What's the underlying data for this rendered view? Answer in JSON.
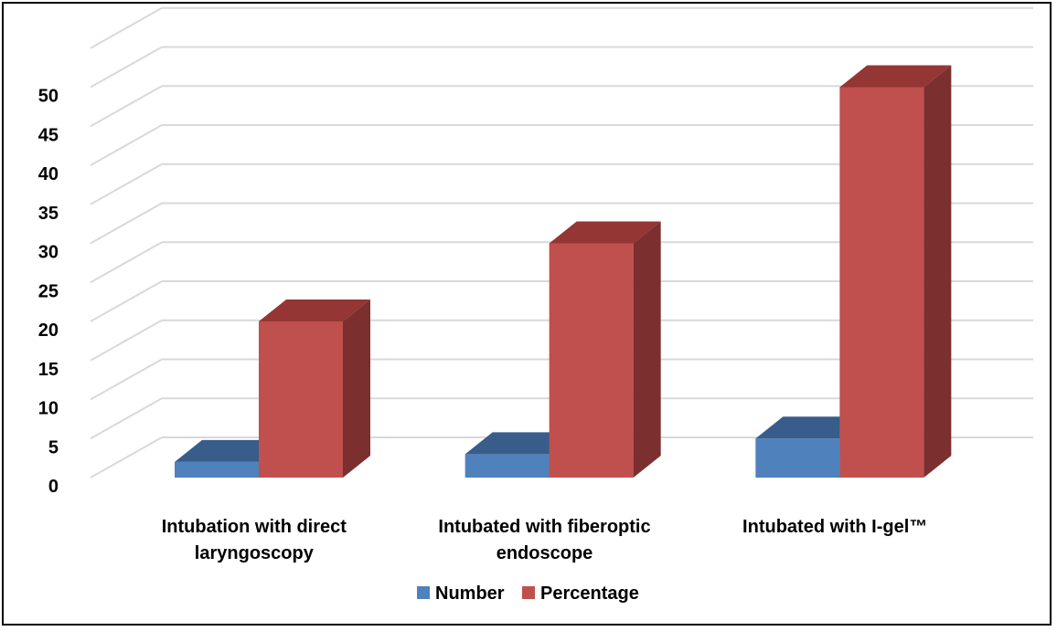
{
  "chart_data": {
    "type": "bar",
    "style": "3d-clustered-column",
    "categories": [
      [
        "Intubation with direct",
        "laryngoscopy"
      ],
      [
        "Intubated with fiberoptic",
        "endoscope"
      ],
      [
        "Intubated with I-gel™"
      ]
    ],
    "series": [
      {
        "name": "Number",
        "values": [
          2,
          3,
          5
        ],
        "color": "#4F81BD",
        "top_color": "#385D8A",
        "side_color": "#2C4A6E"
      },
      {
        "name": "Percentage",
        "values": [
          20,
          30,
          50
        ],
        "color": "#C0504D",
        "top_color": "#943634",
        "side_color": "#7B2F2E"
      }
    ],
    "yticks": [
      "0",
      "5",
      "10",
      "15",
      "20",
      "25",
      "30",
      "35",
      "40",
      "45",
      "50"
    ],
    "ylim": [
      0,
      50
    ],
    "grid": true,
    "legend_position": "bottom"
  }
}
